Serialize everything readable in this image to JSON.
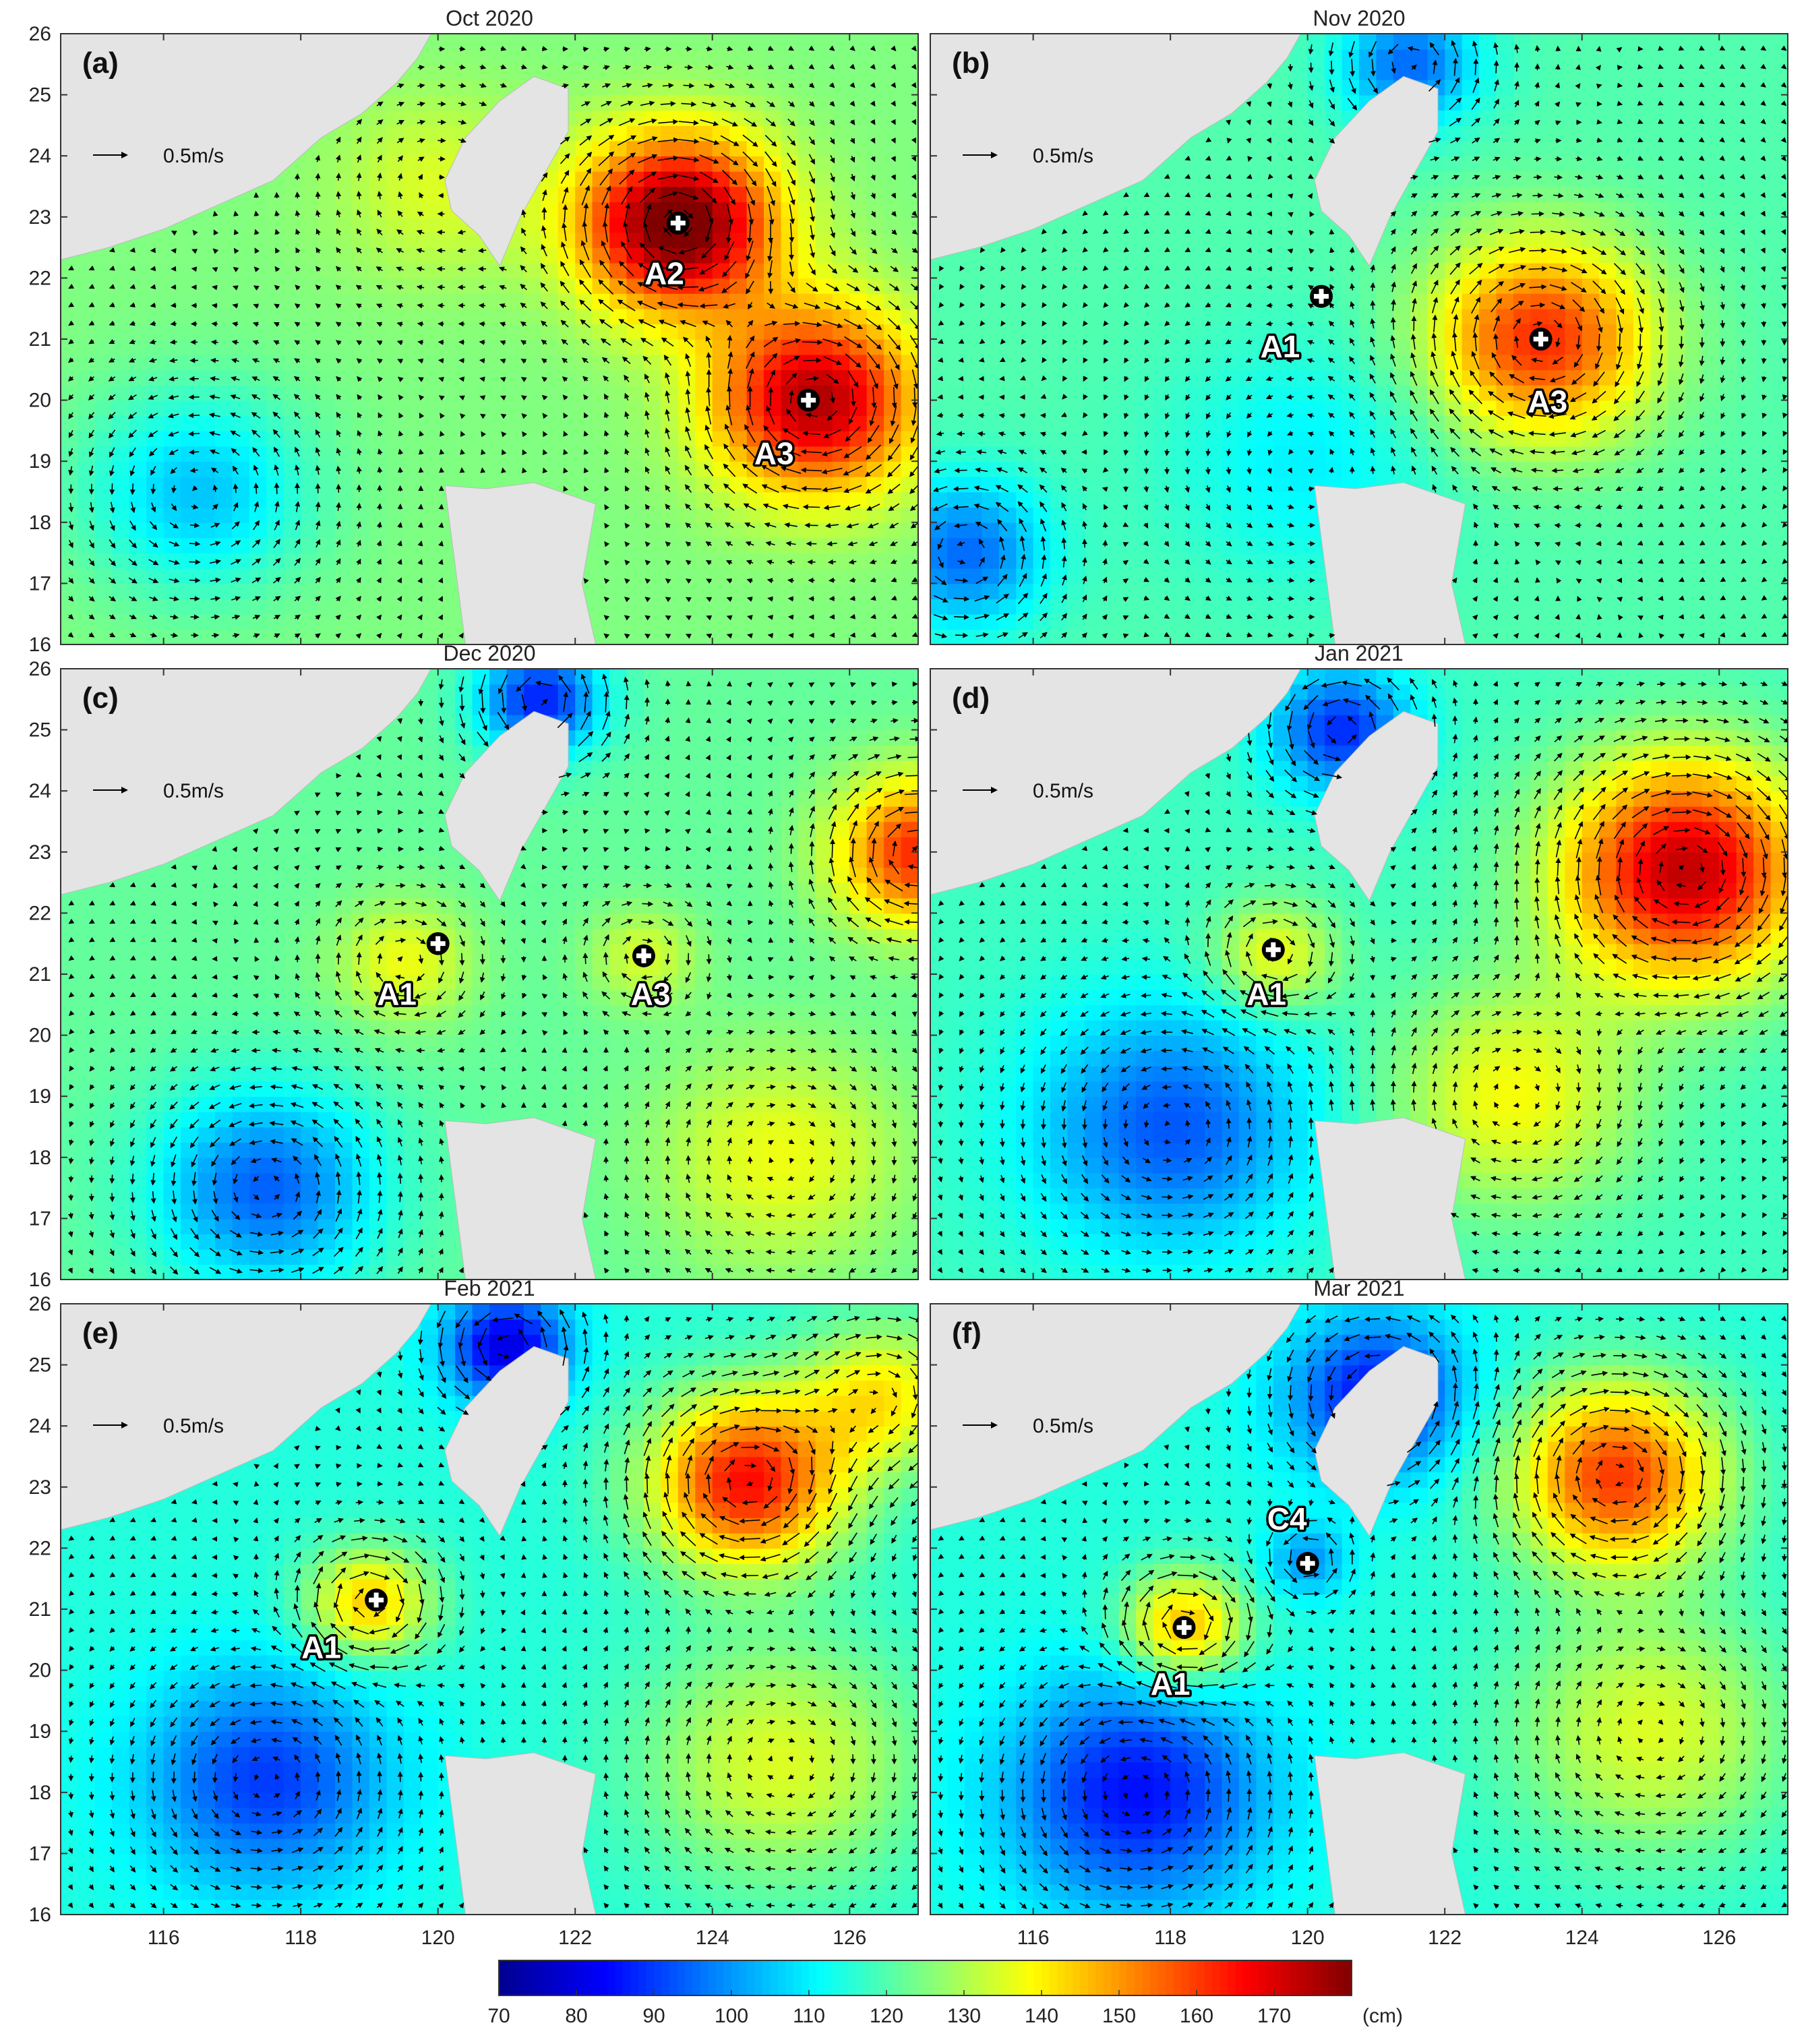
{
  "map": {
    "lon_range": [
      114.5,
      127.0
    ],
    "lat_range": [
      16,
      26
    ],
    "lon_ticks": [
      116,
      118,
      120,
      122,
      124,
      126
    ],
    "lat_ticks": [
      16,
      17,
      18,
      19,
      20,
      21,
      22,
      23,
      24,
      25,
      26
    ],
    "scale_arrow_label": "0.5m/s",
    "colorbar": {
      "min": 70,
      "max": 180,
      "ticks": [
        70,
        80,
        90,
        100,
        110,
        120,
        130,
        140,
        150,
        160,
        170
      ],
      "unit": "(cm)",
      "colors": [
        "#00008f",
        "#0000ff",
        "#0080ff",
        "#00ffff",
        "#80ff80",
        "#ffff00",
        "#ff8000",
        "#ff0000",
        "#800000"
      ]
    },
    "land_color": "#e4e4e4",
    "panels": [
      {
        "title": "Oct 2020",
        "label": "(a)",
        "base": 125,
        "blobs": [
          [
            123.5,
            22.9,
            60,
            1.4
          ],
          [
            125.5,
            20.0,
            50,
            1.5
          ],
          [
            120.0,
            23.5,
            10,
            1.5
          ],
          [
            116.5,
            18.5,
            -20,
            1.6
          ]
        ],
        "eddies": [
          {
            "name": "A2",
            "lon": 123.5,
            "lat": 22.9,
            "tx": 123.3,
            "ty": 21.9
          },
          {
            "name": "A3",
            "lon": 125.4,
            "lat": 20.0,
            "tx": 124.9,
            "ty": 18.95
          }
        ]
      },
      {
        "title": "Nov 2020",
        "label": "(b)",
        "base": 120,
        "blobs": [
          [
            123.4,
            21.0,
            42,
            1.6
          ],
          [
            120.0,
            19.0,
            -10,
            2.0
          ],
          [
            115.0,
            17.5,
            -25,
            1.2
          ],
          [
            121.5,
            25.5,
            -25,
            1.0
          ]
        ],
        "eddies": [
          {
            "name": "A1",
            "lon": 120.2,
            "lat": 21.7,
            "tx": 119.6,
            "ty": 20.7
          },
          {
            "name": "A3",
            "lon": 123.4,
            "lat": 21.0,
            "tx": 123.5,
            "ty": 19.8
          }
        ]
      },
      {
        "title": "Dec 2020",
        "label": "(c)",
        "base": 122,
        "blobs": [
          [
            119.5,
            21.2,
            15,
            1.0
          ],
          [
            123.0,
            21.3,
            12,
            0.8
          ],
          [
            117.5,
            17.5,
            -28,
            1.6
          ],
          [
            121.5,
            25.5,
            -35,
            0.9
          ],
          [
            127.0,
            23.0,
            40,
            1.2
          ],
          [
            125.0,
            18.0,
            15,
            1.8
          ]
        ],
        "eddies": [
          {
            "name": "A1",
            "lon": 120.0,
            "lat": 21.5,
            "tx": 119.4,
            "ty": 20.5
          },
          {
            "name": "A3",
            "lon": 123.0,
            "lat": 21.3,
            "tx": 123.1,
            "ty": 20.5
          }
        ]
      },
      {
        "title": "Jan 2021",
        "label": "(d)",
        "base": 118,
        "blobs": [
          [
            125.5,
            22.7,
            55,
            1.8
          ],
          [
            119.5,
            21.3,
            20,
            0.9
          ],
          [
            118.0,
            18.5,
            -25,
            2.0
          ],
          [
            120.5,
            25.0,
            -30,
            1.0
          ],
          [
            123.0,
            19.0,
            20,
            1.8
          ]
        ],
        "eddies": [
          {
            "name": "A1",
            "lon": 119.5,
            "lat": 21.4,
            "tx": 119.4,
            "ty": 20.5
          }
        ]
      },
      {
        "title": "Feb 2021",
        "label": "(e)",
        "base": 115,
        "blobs": [
          [
            124.5,
            23.1,
            50,
            1.4
          ],
          [
            119.0,
            21.1,
            30,
            0.9
          ],
          [
            117.5,
            18.2,
            -25,
            1.8
          ],
          [
            121.0,
            25.3,
            -35,
            0.9
          ],
          [
            126.5,
            24.5,
            25,
            1.2
          ],
          [
            125.0,
            18.5,
            20,
            2.0
          ]
        ],
        "eddies": [
          {
            "name": "A1",
            "lon": 119.1,
            "lat": 21.15,
            "tx": 118.3,
            "ty": 20.2
          }
        ]
      },
      {
        "title": "Mar 2021",
        "label": "(f)",
        "base": 115,
        "blobs": [
          [
            124.5,
            23.2,
            45,
            1.5
          ],
          [
            118.2,
            20.7,
            33,
            0.9
          ],
          [
            117.5,
            18.0,
            -30,
            1.9
          ],
          [
            120.0,
            21.8,
            -15,
            0.6
          ],
          [
            121.0,
            24.5,
            -30,
            1.3
          ],
          [
            125.0,
            19.0,
            20,
            2.0
          ]
        ],
        "eddies": [
          {
            "name": "A1",
            "lon": 118.2,
            "lat": 20.7,
            "tx": 118.0,
            "ty": 19.6
          },
          {
            "name": "C4",
            "lon": 120.0,
            "lat": 21.75,
            "tx": 119.7,
            "ty": 22.3
          }
        ]
      }
    ]
  }
}
